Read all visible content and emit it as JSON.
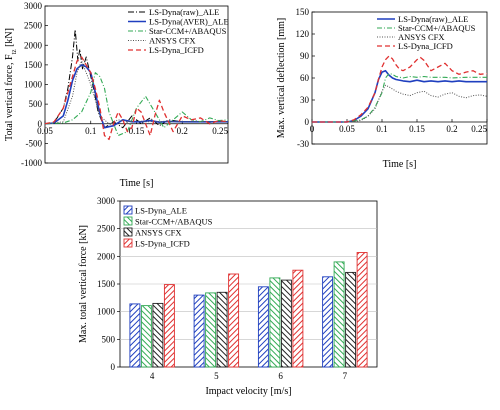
{
  "chart_data": [
    {
      "type": "line",
      "xlabel": "Time [s]",
      "ylabel": "Total vertical force, F",
      "ylabel_sub": "tz",
      "ylabel_unit": " [kN]",
      "xlim": [
        0.05,
        0.25
      ],
      "ylim": [
        -1000,
        3000
      ],
      "xticks": [
        0.05,
        0.1,
        0.15,
        0.2,
        0.25
      ],
      "xtick_labels": [
        "0.05",
        "0.1",
        "0.15",
        "0.2",
        "0.25"
      ],
      "yticks": [
        -1000,
        -500,
        0,
        500,
        1000,
        1500,
        2000,
        2500,
        3000
      ],
      "legend_position": "top-right",
      "series": [
        {
          "name": "LS-Dyna(raw)_ALE",
          "color": "#000000",
          "dash": "6,2,1,2",
          "width": 1,
          "x": [
            0.05,
            0.06,
            0.07,
            0.075,
            0.08,
            0.083,
            0.086,
            0.088,
            0.091,
            0.095,
            0.1,
            0.104,
            0.108,
            0.115,
            0.125,
            0.135,
            0.145,
            0.155,
            0.165,
            0.175,
            0.185,
            0.2,
            0.215,
            0.23,
            0.25
          ],
          "y": [
            0,
            30,
            400,
            900,
            1700,
            2400,
            1600,
            1900,
            1400,
            1700,
            1200,
            800,
            300,
            -100,
            50,
            -100,
            200,
            0,
            150,
            -50,
            100,
            50,
            60,
            40,
            50
          ]
        },
        {
          "name": "LS-Dyna(AVER)_ALE",
          "color": "#1f3fbf",
          "dash": "",
          "width": 1.6,
          "x": [
            0.05,
            0.06,
            0.07,
            0.075,
            0.08,
            0.085,
            0.09,
            0.095,
            0.1,
            0.105,
            0.11,
            0.115,
            0.125,
            0.135,
            0.145,
            0.155,
            0.165,
            0.175,
            0.185,
            0.2,
            0.215,
            0.23,
            0.25
          ],
          "y": [
            0,
            20,
            200,
            600,
            1100,
            1400,
            1500,
            1450,
            1300,
            800,
            250,
            -100,
            -50,
            100,
            50,
            50,
            80,
            40,
            60,
            50,
            50,
            50,
            50
          ]
        },
        {
          "name": "Star-CCM+/ABAQUS",
          "color": "#33aa55",
          "dash": "5,2,1,2",
          "width": 1.1,
          "x": [
            0.05,
            0.07,
            0.08,
            0.09,
            0.1,
            0.105,
            0.11,
            0.115,
            0.12,
            0.13,
            0.14,
            0.15,
            0.16,
            0.17,
            0.18,
            0.19,
            0.2,
            0.21,
            0.22,
            0.23,
            0.24,
            0.25
          ],
          "y": [
            0,
            20,
            100,
            300,
            800,
            1300,
            1200,
            900,
            300,
            -300,
            -200,
            400,
            700,
            300,
            -100,
            100,
            300,
            100,
            50,
            150,
            80,
            100
          ]
        },
        {
          "name": "ANSYS CFX",
          "color": "#555555",
          "dash": "1,1.5",
          "width": 1,
          "x": [
            0.05,
            0.07,
            0.08,
            0.085,
            0.09,
            0.095,
            0.1,
            0.105,
            0.11,
            0.12,
            0.13,
            0.14,
            0.15,
            0.16,
            0.18,
            0.2,
            0.22,
            0.25
          ],
          "y": [
            0,
            50,
            700,
            1300,
            1600,
            1300,
            1000,
            600,
            200,
            0,
            100,
            50,
            80,
            50,
            60,
            50,
            60,
            50
          ]
        },
        {
          "name": "LS-Dyna_ICFD",
          "color": "#e03030",
          "dash": "5,3",
          "width": 1.3,
          "x": [
            0.05,
            0.06,
            0.07,
            0.075,
            0.08,
            0.085,
            0.09,
            0.095,
            0.1,
            0.105,
            0.11,
            0.115,
            0.12,
            0.125,
            0.13,
            0.135,
            0.14,
            0.145,
            0.15,
            0.155,
            0.16,
            0.165,
            0.17,
            0.175,
            0.18,
            0.19,
            0.2,
            0.21,
            0.22,
            0.23,
            0.24,
            0.25
          ],
          "y": [
            0,
            50,
            400,
            800,
            1200,
            1600,
            1700,
            1500,
            1300,
            900,
            400,
            -300,
            -400,
            0,
            300,
            100,
            -200,
            -100,
            400,
            300,
            0,
            -300,
            200,
            600,
            300,
            -200,
            200,
            100,
            150,
            0,
            80,
            50
          ]
        }
      ]
    },
    {
      "type": "line",
      "xlabel": "Time [s]",
      "ylabel": "Max. vertical deflection [mm]",
      "xlim": [
        0,
        0.25
      ],
      "ylim": [
        -30,
        150
      ],
      "xticks": [
        0,
        0.05,
        0.1,
        0.15,
        0.2,
        0.25
      ],
      "xtick_labels": [
        "0",
        "0.05",
        "0.1",
        "0.15",
        "0.2",
        "0.25"
      ],
      "yticks": [
        -30,
        0,
        30,
        60,
        90,
        120,
        150
      ],
      "legend_position": "top-right",
      "series": [
        {
          "name": "LS-Dyna(raw)_ALE",
          "color": "#1f3fbf",
          "dash": "",
          "width": 1.6,
          "x": [
            0,
            0.05,
            0.06,
            0.07,
            0.08,
            0.09,
            0.095,
            0.1,
            0.105,
            0.11,
            0.115,
            0.12,
            0.13,
            0.14,
            0.15,
            0.16,
            0.17,
            0.18,
            0.19,
            0.2,
            0.21,
            0.22,
            0.23,
            0.24,
            0.25
          ],
          "y": [
            0,
            0,
            2,
            8,
            18,
            40,
            58,
            68,
            70,
            64,
            60,
            58,
            56,
            55,
            57,
            55,
            56,
            55,
            56,
            55,
            56,
            55,
            55,
            55,
            55
          ]
        },
        {
          "name": "Star-CCM+/ABAQUS",
          "color": "#33aa55",
          "dash": "5,2,1,2",
          "width": 1.1,
          "x": [
            0,
            0.05,
            0.07,
            0.08,
            0.09,
            0.1,
            0.105,
            0.11,
            0.115,
            0.12,
            0.13,
            0.14,
            0.15,
            0.16,
            0.17,
            0.18,
            0.19,
            0.2,
            0.22,
            0.25
          ],
          "y": [
            0,
            0,
            3,
            8,
            20,
            40,
            60,
            66,
            65,
            62,
            60,
            62,
            61,
            62,
            61,
            61,
            61,
            60,
            61,
            61
          ]
        },
        {
          "name": "ANSYS CFX",
          "color": "#555555",
          "dash": "1,1.5",
          "width": 1,
          "x": [
            0,
            0.05,
            0.07,
            0.08,
            0.09,
            0.095,
            0.1,
            0.105,
            0.11,
            0.12,
            0.13,
            0.14,
            0.15,
            0.16,
            0.17,
            0.18,
            0.19,
            0.2,
            0.21,
            0.22,
            0.23,
            0.24,
            0.25
          ],
          "y": [
            0,
            0,
            2,
            8,
            18,
            30,
            42,
            50,
            48,
            42,
            38,
            36,
            40,
            42,
            36,
            34,
            38,
            40,
            35,
            33,
            36,
            37,
            35
          ]
        },
        {
          "name": "LS-Dyna_ICFD",
          "color": "#e03030",
          "dash": "5,3",
          "width": 1.3,
          "x": [
            0,
            0.05,
            0.06,
            0.07,
            0.08,
            0.09,
            0.095,
            0.1,
            0.105,
            0.11,
            0.115,
            0.12,
            0.125,
            0.13,
            0.14,
            0.15,
            0.155,
            0.16,
            0.17,
            0.18,
            0.19,
            0.2,
            0.21,
            0.22,
            0.23,
            0.24,
            0.25
          ],
          "y": [
            0,
            0,
            3,
            10,
            20,
            40,
            58,
            75,
            85,
            90,
            86,
            78,
            72,
            70,
            75,
            85,
            88,
            84,
            70,
            75,
            80,
            70,
            65,
            68,
            70,
            65,
            66
          ]
        }
      ]
    },
    {
      "type": "bar",
      "xlabel": "Impact velocity [m/s]",
      "ylabel": "Max. total vertical force [kN]",
      "categories": [
        "4",
        "5",
        "6",
        "7"
      ],
      "ylim": [
        0,
        3000
      ],
      "yticks": [
        0,
        500,
        1000,
        1500,
        2000,
        2500,
        3000
      ],
      "legend_position": "top-left",
      "series": [
        {
          "name": "LS-Dyna_ALE",
          "color": "#1f3fbf",
          "values": [
            1140,
            1300,
            1450,
            1630
          ]
        },
        {
          "name": "Star-CCM+/ABAQUS",
          "color": "#33aa55",
          "values": [
            1110,
            1340,
            1610,
            1900
          ]
        },
        {
          "name": "ANSYS CFX",
          "color": "#222222",
          "values": [
            1150,
            1350,
            1570,
            1710
          ]
        },
        {
          "name": "LS-Dyna_ICFD",
          "color": "#e03030",
          "values": [
            1490,
            1680,
            1750,
            2070
          ]
        }
      ]
    }
  ]
}
